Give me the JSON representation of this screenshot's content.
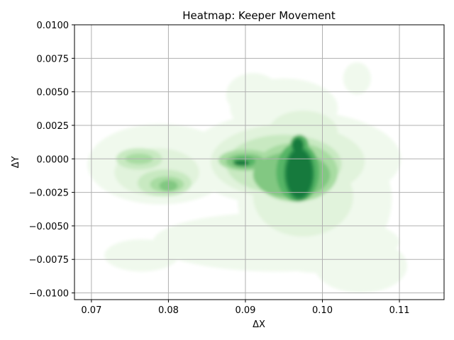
{
  "chart_data": {
    "type": "heatmap",
    "subtype": "kde-contour",
    "title": "Heatmap: Keeper Movement",
    "xlabel": "ΔX",
    "ylabel": "ΔY",
    "xlim": [
      0.0678,
      0.1158
    ],
    "ylim": [
      -0.0105,
      0.01
    ],
    "grid": true,
    "colormap": "Greens",
    "x_ticks": [
      0.07,
      0.08,
      0.09,
      0.1,
      0.11
    ],
    "x_tick_labels": [
      "0.07",
      "0.08",
      "0.09",
      "0.10",
      "0.11"
    ],
    "y_ticks": [
      0.01,
      0.0075,
      0.005,
      0.0025,
      0.0,
      -0.0025,
      -0.005,
      -0.0075,
      -0.01
    ],
    "y_tick_labels": [
      "0.0100",
      "0.0075",
      "0.0050",
      "0.0025",
      "0.0000",
      "−0.0025",
      "−0.0050",
      "−0.0075",
      "−0.0100"
    ],
    "density_levels": [
      {
        "level": 1,
        "color": "#f0f9ed"
      },
      {
        "level": 2,
        "color": "#e1f3dc"
      },
      {
        "level": 3,
        "color": "#c8e9c1"
      },
      {
        "level": 4,
        "color": "#a8dca2"
      },
      {
        "level": 5,
        "color": "#82c882"
      },
      {
        "level": 6,
        "color": "#56b566"
      },
      {
        "level": 7,
        "color": "#2f9650"
      },
      {
        "level": 8,
        "color": "#147a3d"
      }
    ],
    "density_regions": [
      {
        "x": 0.0962,
        "y": 0.0,
        "rx": 0.014,
        "ry": 0.0036,
        "level": 1
      },
      {
        "x": 0.099,
        "y": -0.003,
        "rx": 0.01,
        "ry": 0.0055,
        "level": 1
      },
      {
        "x": 0.095,
        "y": 0.0038,
        "rx": 0.007,
        "ry": 0.0022,
        "level": 1
      },
      {
        "x": 0.079,
        "y": -0.0004,
        "rx": 0.0095,
        "ry": 0.003,
        "level": 1
      },
      {
        "x": 0.0765,
        "y": -0.0072,
        "rx": 0.0048,
        "ry": 0.0012,
        "level": 1
      },
      {
        "x": 0.094,
        "y": -0.0062,
        "rx": 0.016,
        "ry": 0.0022,
        "level": 1
      },
      {
        "x": 0.105,
        "y": -0.008,
        "rx": 0.006,
        "ry": 0.002,
        "level": 1
      },
      {
        "x": 0.1045,
        "y": 0.006,
        "rx": 0.0018,
        "ry": 0.0012,
        "level": 1
      },
      {
        "x": 0.091,
        "y": 0.0048,
        "rx": 0.0035,
        "ry": 0.0016,
        "level": 1
      },
      {
        "x": 0.0955,
        "y": -0.0002,
        "rx": 0.01,
        "ry": 0.0028,
        "level": 2
      },
      {
        "x": 0.0975,
        "y": -0.0028,
        "rx": 0.0065,
        "ry": 0.003,
        "level": 2
      },
      {
        "x": 0.0785,
        "y": -0.001,
        "rx": 0.0055,
        "ry": 0.0018,
        "level": 2
      },
      {
        "x": 0.0975,
        "y": 0.002,
        "rx": 0.0045,
        "ry": 0.0016,
        "level": 2
      },
      {
        "x": 0.095,
        "y": -0.0004,
        "rx": 0.0075,
        "ry": 0.0022,
        "level": 3
      },
      {
        "x": 0.0795,
        "y": -0.0018,
        "rx": 0.0035,
        "ry": 0.001,
        "level": 3
      },
      {
        "x": 0.0762,
        "y": 0.0,
        "rx": 0.003,
        "ry": 0.0008,
        "level": 3
      },
      {
        "x": 0.0965,
        "y": -0.001,
        "rx": 0.0055,
        "ry": 0.0022,
        "level": 4
      },
      {
        "x": 0.09,
        "y": -0.0001,
        "rx": 0.0035,
        "ry": 0.0008,
        "level": 4
      },
      {
        "x": 0.0798,
        "y": -0.0019,
        "rx": 0.0022,
        "ry": 0.0006,
        "level": 4
      },
      {
        "x": 0.0762,
        "y": 0.0,
        "rx": 0.0018,
        "ry": 0.0004,
        "level": 4
      },
      {
        "x": 0.096,
        "y": -0.0012,
        "rx": 0.005,
        "ry": 0.0017,
        "level": 5
      },
      {
        "x": 0.09,
        "y": -0.0002,
        "rx": 0.0025,
        "ry": 0.0006,
        "level": 5
      },
      {
        "x": 0.08,
        "y": -0.002,
        "rx": 0.0012,
        "ry": 0.0004,
        "level": 5
      },
      {
        "x": 0.0968,
        "y": -0.001,
        "rx": 0.0028,
        "ry": 0.0022,
        "level": 6
      },
      {
        "x": 0.097,
        "y": 0.001,
        "rx": 0.0012,
        "ry": 0.0008,
        "level": 6
      },
      {
        "x": 0.0898,
        "y": -0.0002,
        "rx": 0.0015,
        "ry": 0.0004,
        "level": 6
      },
      {
        "x": 0.097,
        "y": -0.0011,
        "rx": 0.002,
        "ry": 0.002,
        "level": 7
      },
      {
        "x": 0.0968,
        "y": 0.001,
        "rx": 0.0008,
        "ry": 0.0006,
        "level": 7
      },
      {
        "x": 0.0895,
        "y": -0.0003,
        "rx": 0.001,
        "ry": 0.0002,
        "level": 8
      },
      {
        "x": 0.097,
        "y": -0.0011,
        "rx": 0.0017,
        "ry": 0.0018,
        "level": 8
      },
      {
        "x": 0.0968,
        "y": 0.001,
        "rx": 0.0007,
        "ry": 0.0005,
        "level": 8
      }
    ]
  }
}
